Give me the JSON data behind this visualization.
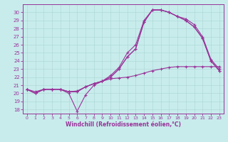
{
  "xlabel": "Windchill (Refroidissement éolien,°C)",
  "xlim": [
    -0.5,
    23.5
  ],
  "ylim": [
    17.5,
    31.0
  ],
  "xticks": [
    0,
    1,
    2,
    3,
    4,
    5,
    6,
    7,
    8,
    9,
    10,
    11,
    12,
    13,
    14,
    15,
    16,
    17,
    18,
    19,
    20,
    21,
    22,
    23
  ],
  "yticks": [
    18,
    19,
    20,
    21,
    22,
    23,
    24,
    25,
    26,
    27,
    28,
    29,
    30
  ],
  "bg_color": "#c8ecec",
  "line_color": "#993399",
  "grid_color": "#b0d8d8",
  "lines": [
    [
      20.5,
      20.0,
      20.5,
      20.5,
      20.5,
      20.0,
      17.8,
      19.8,
      21.0,
      21.5,
      22.0,
      23.0,
      24.5,
      25.5,
      28.8,
      30.3,
      30.3,
      30.0,
      29.5,
      29.0,
      28.2,
      26.8,
      24.0,
      22.8
    ],
    [
      20.5,
      20.0,
      20.5,
      20.5,
      20.5,
      20.2,
      20.2,
      20.8,
      21.2,
      21.5,
      22.0,
      23.0,
      24.5,
      25.5,
      28.8,
      30.3,
      30.3,
      30.0,
      29.5,
      29.0,
      28.2,
      26.8,
      24.0,
      22.8
    ],
    [
      20.5,
      20.0,
      20.5,
      20.5,
      20.5,
      20.2,
      20.2,
      20.8,
      21.2,
      21.5,
      22.2,
      23.2,
      25.0,
      26.0,
      29.0,
      30.3,
      30.3,
      30.0,
      29.5,
      29.2,
      28.5,
      27.0,
      24.2,
      23.0
    ],
    [
      20.5,
      20.2,
      20.5,
      20.5,
      20.5,
      20.2,
      20.3,
      20.8,
      21.2,
      21.5,
      21.8,
      21.9,
      22.0,
      22.2,
      22.5,
      22.8,
      23.0,
      23.2,
      23.3,
      23.3,
      23.3,
      23.3,
      23.3,
      23.3
    ]
  ]
}
